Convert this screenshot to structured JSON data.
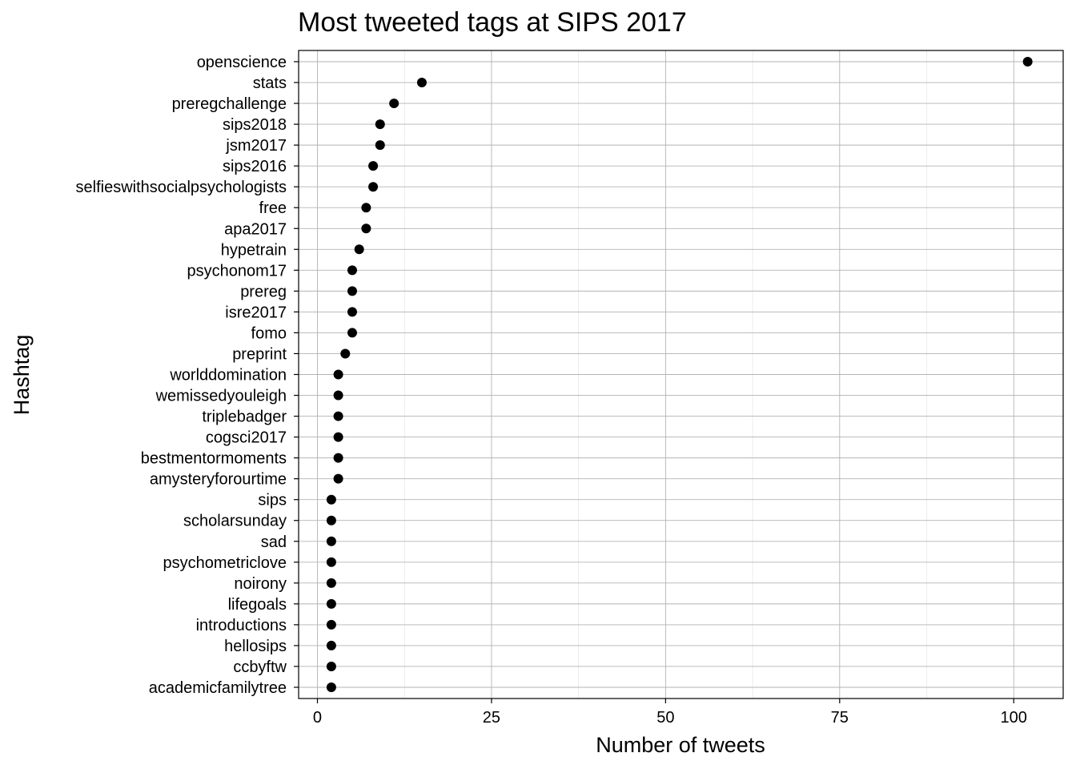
{
  "chart_data": {
    "type": "scatter",
    "title": "Most tweeted tags at SIPS 2017",
    "xlabel": "Number of tweets",
    "ylabel": "Hashtag",
    "xlim": [
      -2.7,
      107.1
    ],
    "xticks": [
      0,
      25,
      50,
      75,
      100
    ],
    "x_tick_labels": [
      "0",
      "25",
      "50",
      "75",
      "100"
    ],
    "grid": true,
    "categories": [
      "openscience",
      "stats",
      "preregchallenge",
      "sips2018",
      "jsm2017",
      "sips2016",
      "selfieswithsocialpsychologists",
      "free",
      "apa2017",
      "hypetrain",
      "psychonom17",
      "prereg",
      "isre2017",
      "fomo",
      "preprint",
      "worlddomination",
      "wemissedyouleigh",
      "triplebadger",
      "cogsci2017",
      "bestmentormoments",
      "amysteryforourtime",
      "sips",
      "scholarsunday",
      "sad",
      "psychometriclove",
      "noirony",
      "lifegoals",
      "introductions",
      "hellosips",
      "ccbyftw",
      "academicfamilytree"
    ],
    "values": [
      102,
      15,
      11,
      9,
      9,
      8,
      8,
      7,
      7,
      6,
      5,
      5,
      5,
      5,
      4,
      3,
      3,
      3,
      3,
      3,
      3,
      2,
      2,
      2,
      2,
      2,
      2,
      2,
      2,
      2,
      2
    ],
    "point_color": "#000000"
  }
}
